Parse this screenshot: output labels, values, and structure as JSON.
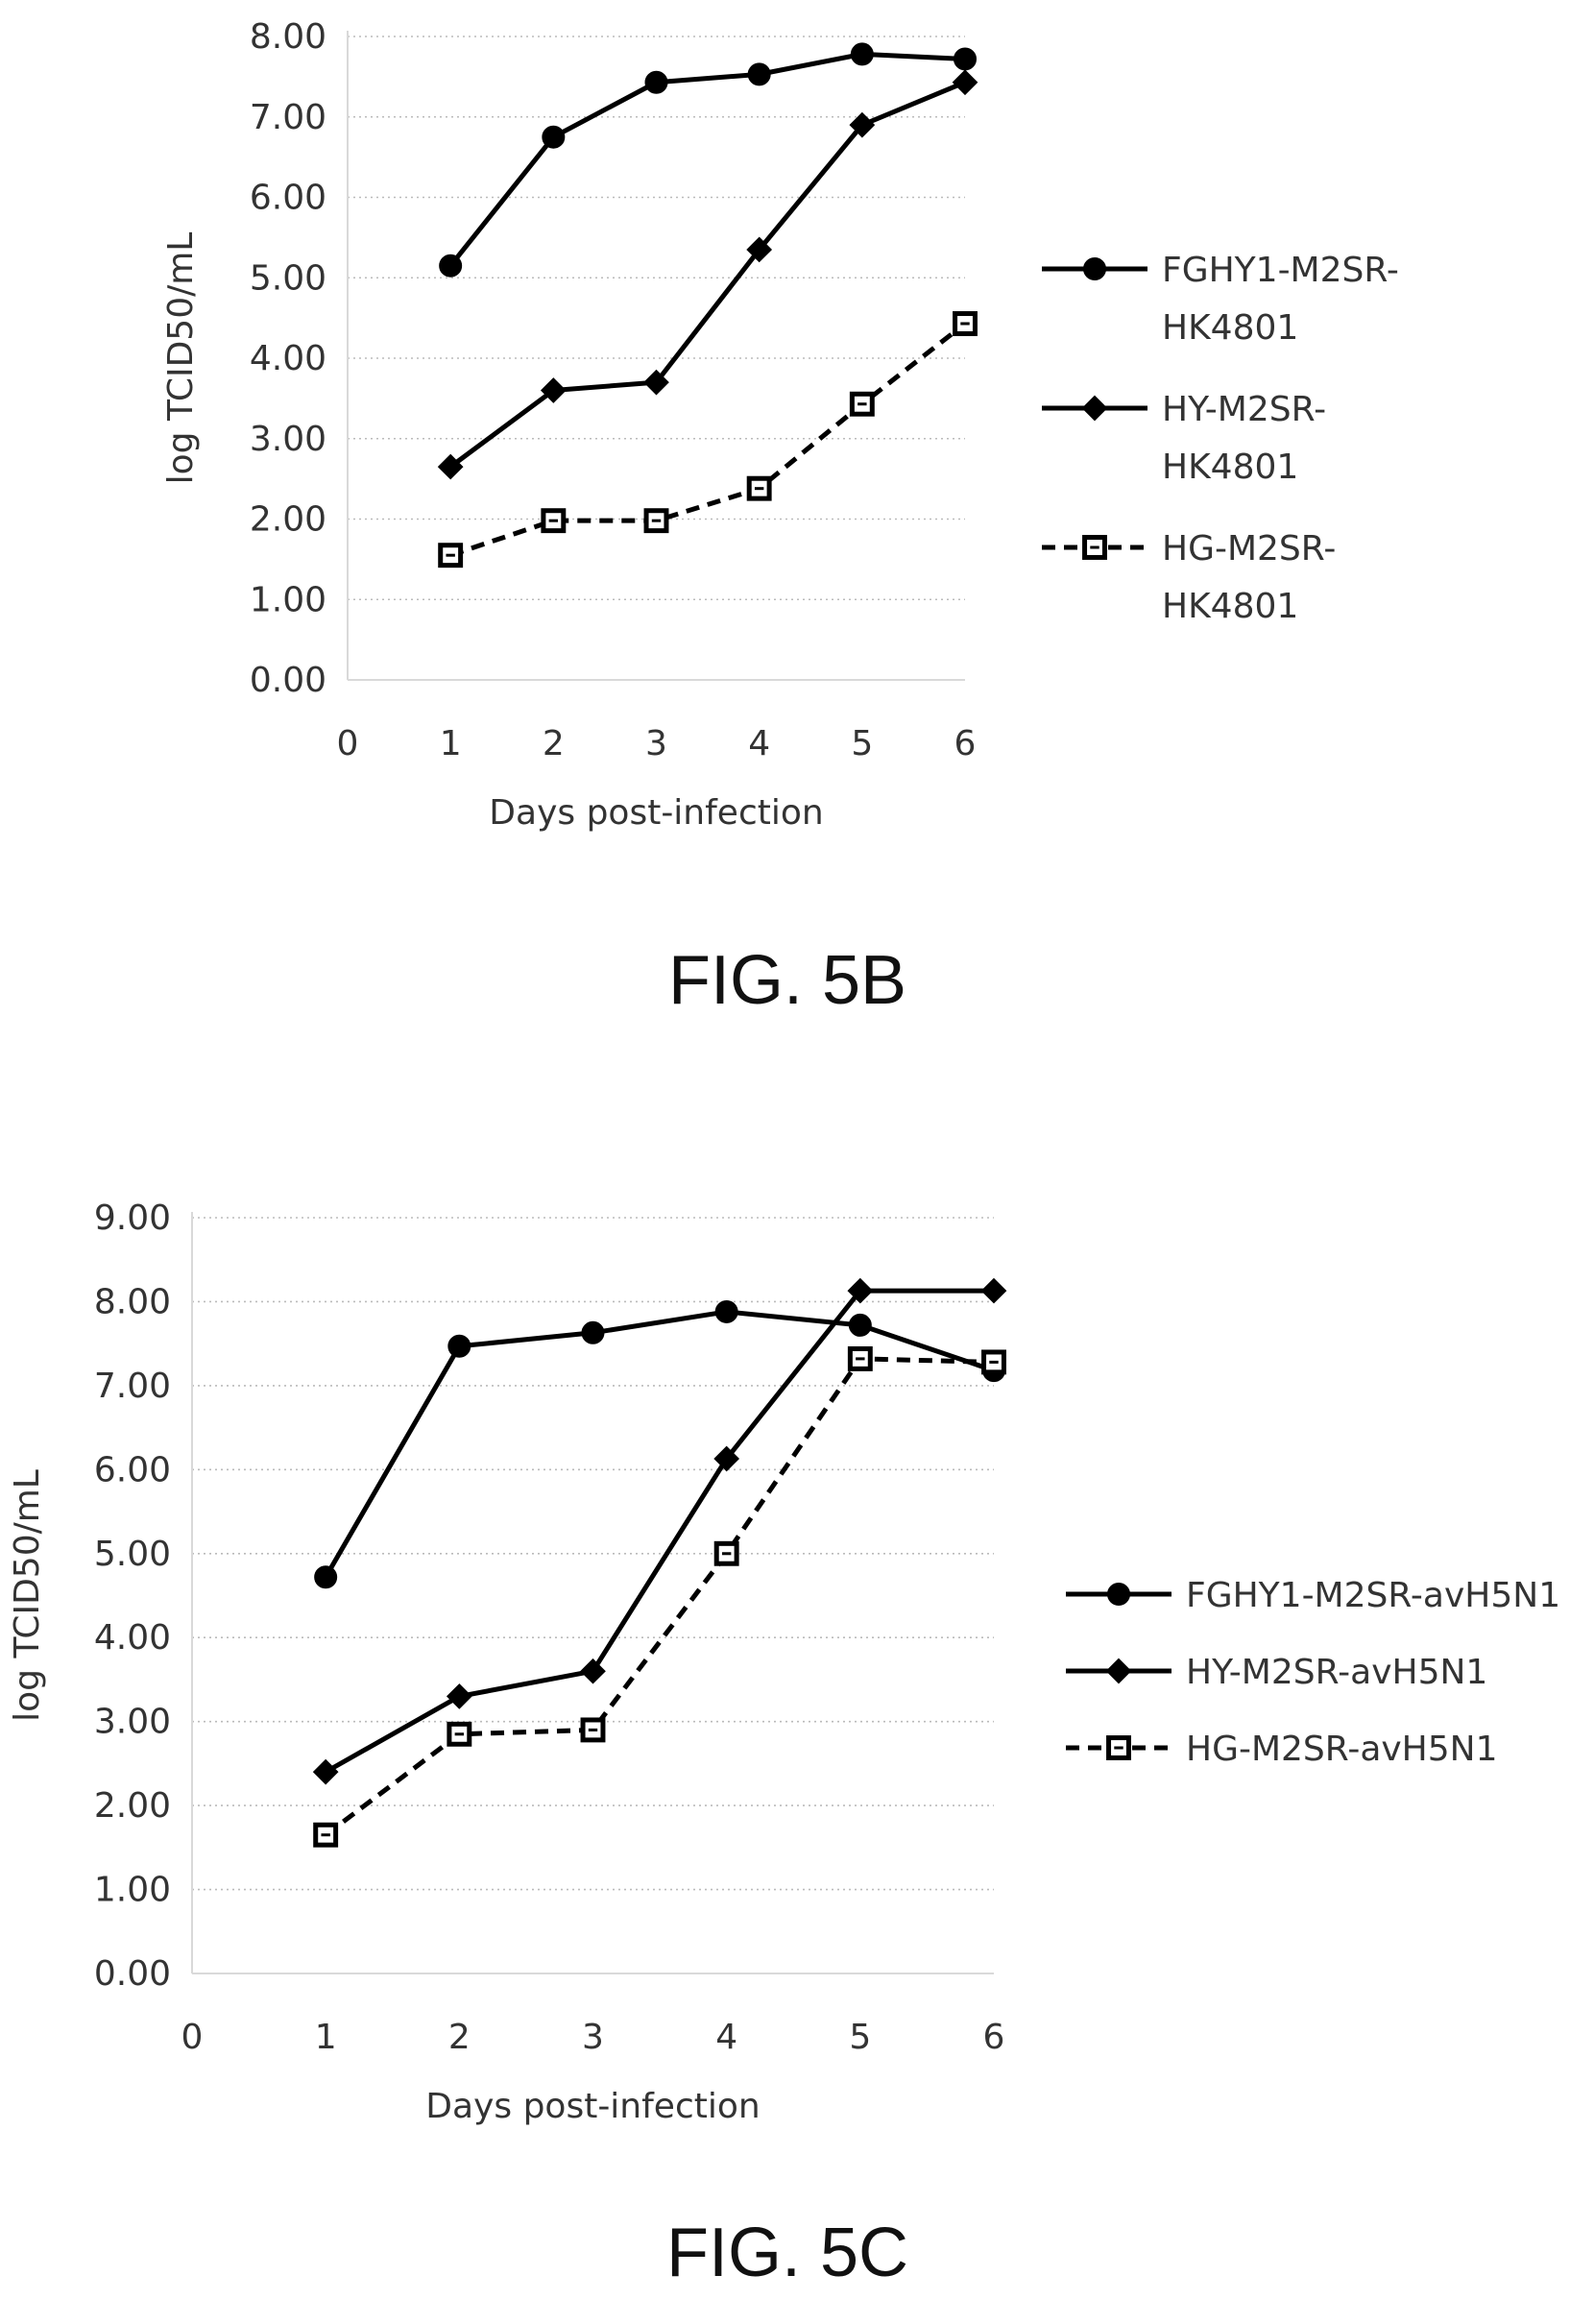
{
  "chart_data": [
    {
      "type": "line",
      "title": "",
      "caption": "FIG. 5B",
      "xlabel": "Days post-infection",
      "ylabel": "log TCID50/mL",
      "x_ticks": [
        "0",
        "1",
        "2",
        "3",
        "4",
        "5",
        "6"
      ],
      "y_ticks": [
        "0.00",
        "1.00",
        "2.00",
        "3.00",
        "4.00",
        "5.00",
        "6.00",
        "7.00",
        "8.00"
      ],
      "xlim": [
        0,
        6
      ],
      "ylim": [
        0,
        8
      ],
      "grid": "horizontal dotted",
      "legend_position": "right",
      "series": [
        {
          "name": "FGHY1-M2SR-HK4801",
          "legend_lines": [
            "FGHY1-M2SR-",
            "HK4801"
          ],
          "marker": "circle",
          "dash": "solid",
          "x": [
            1,
            2,
            3,
            4,
            5,
            6
          ],
          "values": [
            5.15,
            6.75,
            7.43,
            7.53,
            7.78,
            7.72
          ]
        },
        {
          "name": "HY-M2SR-HK4801",
          "legend_lines": [
            "HY-M2SR-",
            "HK4801"
          ],
          "marker": "diamond",
          "dash": "solid",
          "x": [
            1,
            2,
            3,
            4,
            5,
            6
          ],
          "values": [
            2.65,
            3.6,
            3.7,
            5.35,
            6.9,
            7.43
          ]
        },
        {
          "name": "HG-M2SR-HK4801",
          "legend_lines": [
            "HG-M2SR-",
            "HK4801"
          ],
          "marker": "square-open",
          "dash": "dashed",
          "x": [
            1,
            2,
            3,
            4,
            5,
            6
          ],
          "values": [
            1.55,
            1.98,
            1.98,
            2.38,
            3.43,
            4.43
          ]
        }
      ]
    },
    {
      "type": "line",
      "title": "",
      "caption": "FIG. 5C",
      "xlabel": "Days post-infection",
      "ylabel": "log TCID50/mL",
      "x_ticks": [
        "0",
        "1",
        "2",
        "3",
        "4",
        "5",
        "6"
      ],
      "y_ticks": [
        "0.00",
        "1.00",
        "2.00",
        "3.00",
        "4.00",
        "5.00",
        "6.00",
        "7.00",
        "8.00",
        "9.00"
      ],
      "xlim": [
        0,
        6
      ],
      "ylim": [
        0,
        9
      ],
      "grid": "horizontal dotted",
      "legend_position": "right",
      "series": [
        {
          "name": "FGHY1-M2SR-avH5N1",
          "legend_lines": [
            "FGHY1-M2SR-avH5N1"
          ],
          "marker": "circle",
          "dash": "solid",
          "x": [
            1,
            2,
            3,
            4,
            5,
            6
          ],
          "values": [
            4.72,
            7.47,
            7.63,
            7.88,
            7.72,
            7.18
          ]
        },
        {
          "name": "HY-M2SR-avH5N1",
          "legend_lines": [
            "HY-M2SR-avH5N1"
          ],
          "marker": "diamond",
          "dash": "solid",
          "x": [
            1,
            2,
            3,
            4,
            5,
            6
          ],
          "values": [
            2.4,
            3.3,
            3.6,
            6.13,
            8.13,
            8.13
          ]
        },
        {
          "name": "HG-M2SR-avH5N1",
          "legend_lines": [
            "HG-M2SR-avH5N1"
          ],
          "marker": "square-open",
          "dash": "dashed",
          "x": [
            1,
            2,
            3,
            4,
            5,
            6
          ],
          "values": [
            1.65,
            2.85,
            2.9,
            5.0,
            7.32,
            7.28
          ]
        }
      ]
    }
  ],
  "colors": {
    "series": "#000000",
    "grid": "#bbbbbb",
    "axis": "#d9d9d9",
    "text": "#333333"
  }
}
